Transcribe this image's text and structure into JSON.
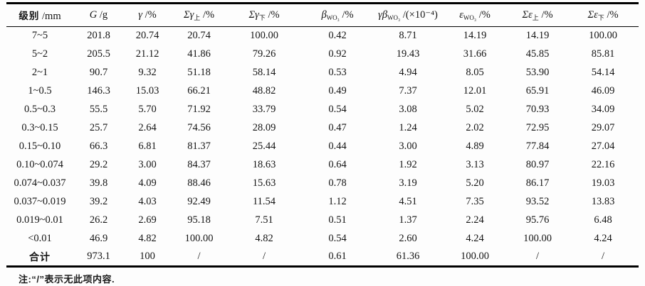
{
  "table": {
    "columns": [
      {
        "label_main": "级别",
        "label_sub": "",
        "label_unit": " /mm",
        "italic": false
      },
      {
        "label_main": "G",
        "label_sub": "",
        "label_unit": " /g",
        "italic": true
      },
      {
        "label_main": "γ",
        "label_sub": "",
        "label_unit": " /%",
        "italic": true
      },
      {
        "label_main": "Σγ",
        "label_sub": "上",
        "label_unit": " /%",
        "italic": true
      },
      {
        "label_main": "Σγ",
        "label_sub": "下",
        "label_unit": " /%",
        "italic": true
      },
      {
        "label_main": "β",
        "label_sub": "WO₃",
        "label_unit": " /%",
        "italic": true
      },
      {
        "label_main": "γβ",
        "label_sub": "WO₃",
        "label_unit": " /(×10⁻⁴)",
        "italic": true
      },
      {
        "label_main": "ε",
        "label_sub": "WO₃",
        "label_unit": " /%",
        "italic": true
      },
      {
        "label_main": "Σε",
        "label_sub": "上",
        "label_unit": " /%",
        "italic": true
      },
      {
        "label_main": "Σε",
        "label_sub": "下",
        "label_unit": " /%",
        "italic": true
      }
    ],
    "rows": [
      [
        "7~5",
        "201.8",
        "20.74",
        "20.74",
        "100.00",
        "0.42",
        "8.71",
        "14.19",
        "14.19",
        "100.00"
      ],
      [
        "5~2",
        "205.5",
        "21.12",
        "41.86",
        "79.26",
        "0.92",
        "19.43",
        "31.66",
        "45.85",
        "85.81"
      ],
      [
        "2~1",
        "90.7",
        "9.32",
        "51.18",
        "58.14",
        "0.53",
        "4.94",
        "8.05",
        "53.90",
        "54.14"
      ],
      [
        "1~0.5",
        "146.3",
        "15.03",
        "66.21",
        "48.82",
        "0.49",
        "7.37",
        "12.01",
        "65.91",
        "46.09"
      ],
      [
        "0.5~0.3",
        "55.5",
        "5.70",
        "71.92",
        "33.79",
        "0.54",
        "3.08",
        "5.02",
        "70.93",
        "34.09"
      ],
      [
        "0.3~0.15",
        "25.7",
        "2.64",
        "74.56",
        "28.09",
        "0.47",
        "1.24",
        "2.02",
        "72.95",
        "29.07"
      ],
      [
        "0.15~0.10",
        "66.3",
        "6.81",
        "81.37",
        "25.44",
        "0.44",
        "3.00",
        "4.89",
        "77.84",
        "27.04"
      ],
      [
        "0.10~0.074",
        "29.2",
        "3.00",
        "84.37",
        "18.63",
        "0.64",
        "1.92",
        "3.13",
        "80.97",
        "22.16"
      ],
      [
        "0.074~0.037",
        "39.8",
        "4.09",
        "88.46",
        "15.63",
        "0.78",
        "3.19",
        "5.20",
        "86.17",
        "19.03"
      ],
      [
        "0.037~0.019",
        "39.2",
        "4.03",
        "92.49",
        "11.54",
        "1.12",
        "4.51",
        "7.35",
        "93.52",
        "13.83"
      ],
      [
        "0.019~0.01",
        "26.2",
        "2.69",
        "95.18",
        "7.51",
        "0.51",
        "1.37",
        "2.24",
        "95.76",
        "6.48"
      ],
      [
        "<0.01",
        "46.9",
        "4.82",
        "100.00",
        "4.82",
        "0.54",
        "2.60",
        "4.24",
        "100.00",
        "4.24"
      ],
      [
        "合计",
        "973.1",
        "100",
        "/",
        "/",
        "0.61",
        "61.36",
        "100.00",
        "/",
        "/"
      ]
    ],
    "note": "注:“/”表示无此项内容."
  },
  "chart_data": {
    "type": "table",
    "title": "",
    "columns": [
      "级别/mm",
      "G/g",
      "γ/%",
      "Σγ上/%",
      "Σγ下/%",
      "βWO₃/%",
      "γβWO₃/(×10⁻⁴)",
      "εWO₃/%",
      "Σε上/%",
      "Σε下/%"
    ],
    "rows": [
      [
        "7~5",
        201.8,
        20.74,
        20.74,
        100.0,
        0.42,
        8.71,
        14.19,
        14.19,
        100.0
      ],
      [
        "5~2",
        205.5,
        21.12,
        41.86,
        79.26,
        0.92,
        19.43,
        31.66,
        45.85,
        85.81
      ],
      [
        "2~1",
        90.7,
        9.32,
        51.18,
        58.14,
        0.53,
        4.94,
        8.05,
        53.9,
        54.14
      ],
      [
        "1~0.5",
        146.3,
        15.03,
        66.21,
        48.82,
        0.49,
        7.37,
        12.01,
        65.91,
        46.09
      ],
      [
        "0.5~0.3",
        55.5,
        5.7,
        71.92,
        33.79,
        0.54,
        3.08,
        5.02,
        70.93,
        34.09
      ],
      [
        "0.3~0.15",
        25.7,
        2.64,
        74.56,
        28.09,
        0.47,
        1.24,
        2.02,
        72.95,
        29.07
      ],
      [
        "0.15~0.10",
        66.3,
        6.81,
        81.37,
        25.44,
        0.44,
        3.0,
        4.89,
        77.84,
        27.04
      ],
      [
        "0.10~0.074",
        29.2,
        3.0,
        84.37,
        18.63,
        0.64,
        1.92,
        3.13,
        80.97,
        22.16
      ],
      [
        "0.074~0.037",
        39.8,
        4.09,
        88.46,
        15.63,
        0.78,
        3.19,
        5.2,
        86.17,
        19.03
      ],
      [
        "0.037~0.019",
        39.2,
        4.03,
        92.49,
        11.54,
        1.12,
        4.51,
        7.35,
        93.52,
        13.83
      ],
      [
        "0.019~0.01",
        26.2,
        2.69,
        95.18,
        7.51,
        0.51,
        1.37,
        2.24,
        95.76,
        6.48
      ],
      [
        "<0.01",
        46.9,
        4.82,
        100.0,
        4.82,
        0.54,
        2.6,
        4.24,
        100.0,
        4.24
      ],
      [
        "合计",
        973.1,
        100,
        "/",
        "/",
        0.61,
        61.36,
        100.0,
        "/",
        "/"
      ]
    ],
    "note": "注:“/”表示无此项内容."
  }
}
